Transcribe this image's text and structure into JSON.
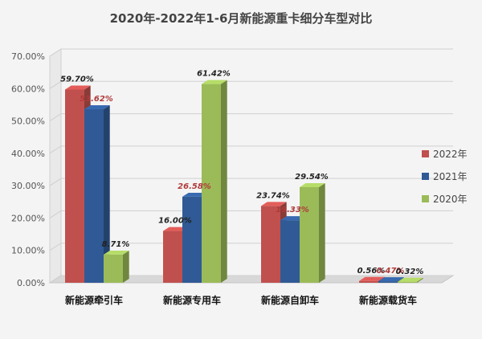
{
  "chart_data": {
    "type": "bar",
    "title": "2020年-2022年1-6月新能源重卡细分车型对比",
    "categories": [
      "新能源牵引车",
      "新能源专用车",
      "新能源自卸车",
      "新能源载货车"
    ],
    "series": [
      {
        "name": "2022年",
        "values": [
          59.7,
          16.0,
          23.74,
          0.56
        ],
        "labels": [
          "59.70%",
          "16.00%",
          "23.74%",
          "0.56%"
        ],
        "color": "#c0504d",
        "label_color": "#222222"
      },
      {
        "name": "2021年",
        "values": [
          53.62,
          26.58,
          19.33,
          0.47
        ],
        "labels": [
          "53.62%",
          "26.58%",
          "19.33%",
          "0.47%"
        ],
        "color": "#2f5a95",
        "label_color": "#b03a3a"
      },
      {
        "name": "2020年",
        "values": [
          8.71,
          61.42,
          29.54,
          0.32
        ],
        "labels": [
          "8.71%",
          "61.42%",
          "29.54%",
          "0.32%"
        ],
        "color": "#9bbb59",
        "label_color": "#222222"
      }
    ],
    "yticks": [
      "0.00%",
      "10.00%",
      "20.00%",
      "30.00%",
      "40.00%",
      "50.00%",
      "60.00%",
      "70.00%"
    ],
    "ylim": [
      0,
      70
    ],
    "grid": true,
    "legend": "right"
  }
}
